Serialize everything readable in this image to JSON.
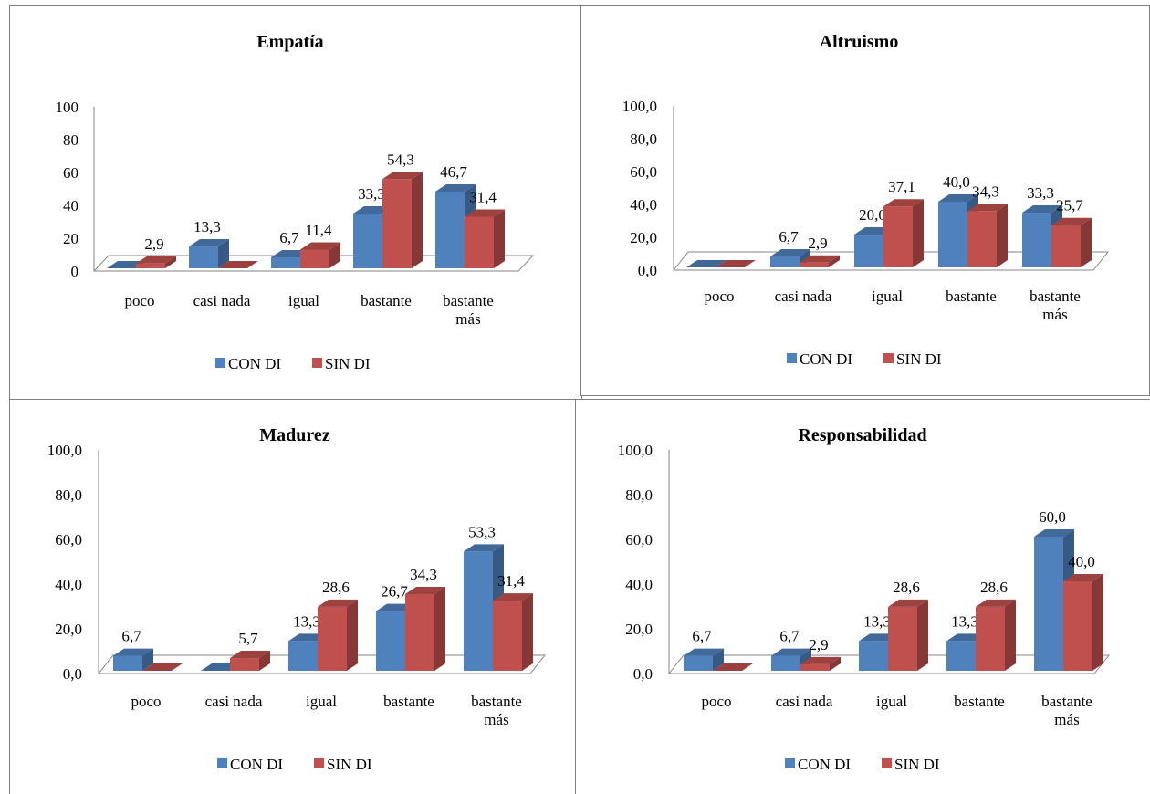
{
  "colors": {
    "con_di": "#4f81bd",
    "sin_di": "#c0504d"
  },
  "legend": [
    "CON DI",
    "SIN DI"
  ],
  "chart_data": [
    {
      "type": "bar",
      "title": "Empatía",
      "categories": [
        [
          "poco"
        ],
        [
          "casi nada"
        ],
        [
          "igual"
        ],
        [
          "bastante"
        ],
        [
          "bastante",
          "más"
        ]
      ],
      "series": [
        {
          "name": "CON DI",
          "values": [
            0,
            13.3,
            6.7,
            33.3,
            46.7
          ],
          "labels": [
            "",
            "13,3",
            "6,7",
            "33,3",
            "46,7"
          ]
        },
        {
          "name": "SIN DI",
          "values": [
            2.9,
            0,
            11.4,
            54.3,
            31.4
          ],
          "labels": [
            "2,9",
            "",
            "11,4",
            "54,3",
            "31,4"
          ]
        }
      ],
      "ylim": [
        0,
        100
      ],
      "yticks": [
        "0",
        "20",
        "40",
        "60",
        "80",
        "100"
      ],
      "legend_position": "bottom",
      "grid": false
    },
    {
      "type": "bar",
      "title": "Altruismo",
      "categories": [
        [
          "poco"
        ],
        [
          "casi nada"
        ],
        [
          "igual"
        ],
        [
          "bastante"
        ],
        [
          "bastante",
          "más"
        ]
      ],
      "series": [
        {
          "name": "CON DI",
          "values": [
            0,
            6.7,
            20.0,
            40.0,
            33.3
          ],
          "labels": [
            "",
            "6,7",
            "20,0",
            "40,0",
            "33,3"
          ]
        },
        {
          "name": "SIN DI",
          "values": [
            0,
            2.9,
            37.1,
            34.3,
            25.7
          ],
          "labels": [
            "",
            "2,9",
            "37,1",
            "34,3",
            "25,7"
          ]
        }
      ],
      "ylim": [
        0,
        100
      ],
      "yticks": [
        "0,0",
        "20,0",
        "40,0",
        "60,0",
        "80,0",
        "100,0"
      ],
      "legend_position": "bottom",
      "grid": false
    },
    {
      "type": "bar",
      "title": "Madurez",
      "categories": [
        [
          "poco"
        ],
        [
          "casi nada"
        ],
        [
          "igual"
        ],
        [
          "bastante"
        ],
        [
          "bastante",
          "más"
        ]
      ],
      "series": [
        {
          "name": "CON DI",
          "values": [
            6.7,
            0,
            13.3,
            26.7,
            53.3
          ],
          "labels": [
            "6,7",
            "",
            "13,3",
            "26,7",
            "53,3"
          ]
        },
        {
          "name": "SIN DI",
          "values": [
            0,
            5.7,
            28.6,
            34.3,
            31.4
          ],
          "labels": [
            "",
            "5,7",
            "28,6",
            "34,3",
            "31,4"
          ]
        }
      ],
      "ylim": [
        0,
        100
      ],
      "yticks": [
        "0,0",
        "20,0",
        "40,0",
        "60,0",
        "80,0",
        "100,0"
      ],
      "legend_position": "bottom",
      "grid": false
    },
    {
      "type": "bar",
      "title": "Responsabilidad",
      "categories": [
        [
          "poco"
        ],
        [
          "casi nada"
        ],
        [
          "igual"
        ],
        [
          "bastante"
        ],
        [
          "bastante",
          "más"
        ]
      ],
      "series": [
        {
          "name": "CON DI",
          "values": [
            6.7,
            6.7,
            13.3,
            13.3,
            60.0
          ],
          "labels": [
            "6,7",
            "6,7",
            "13,3",
            "13,3",
            "60,0"
          ]
        },
        {
          "name": "SIN DI",
          "values": [
            0,
            2.9,
            28.6,
            28.6,
            40.0
          ],
          "labels": [
            "",
            "2,9",
            "28,6",
            "28,6",
            "40,0"
          ]
        }
      ],
      "ylim": [
        0,
        100
      ],
      "yticks": [
        "0,0",
        "20,0",
        "40,0",
        "60,0",
        "80,0",
        "100,0"
      ],
      "legend_position": "bottom",
      "grid": false
    }
  ]
}
